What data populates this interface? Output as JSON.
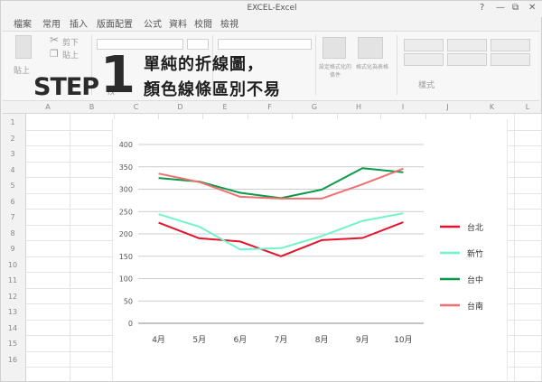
{
  "window": {
    "title": "EXCEL-Excel",
    "controls": [
      "?",
      "—",
      "⧉",
      "✕"
    ]
  },
  "ribbon_tabs": [
    "檔案",
    "常用",
    "插入",
    "版面配置",
    "公式",
    "資料",
    "校閱",
    "檢視"
  ],
  "ribbon": {
    "paste_label": "貼上",
    "cut_label": "剪下",
    "copy_label": "貼上",
    "cond_format_label": "設定格式化的條件",
    "format_table_label": "格式化為表格",
    "styles_label": "樣式",
    "fx_label": "fx"
  },
  "overlay": {
    "step_word": "STEP",
    "step_number": "1",
    "line1": "單純的折線圖，",
    "line2": "顏色線條區別不易"
  },
  "sheet": {
    "columns": [
      "A",
      "B",
      "C",
      "D",
      "E",
      "F",
      "G",
      "H",
      "I",
      "J",
      "K",
      "L"
    ],
    "rows": [
      "1",
      "2",
      "3",
      "4",
      "5",
      "6",
      "7",
      "8",
      "9",
      "10",
      "11",
      "12",
      "13",
      "14",
      "15",
      "16"
    ]
  },
  "chart_data": {
    "type": "line",
    "categories": [
      "4月",
      "5月",
      "6月",
      "7月",
      "8月",
      "9月",
      "10月"
    ],
    "ylim": [
      0,
      400
    ],
    "yticks": [
      "0",
      "50",
      "100",
      "150",
      "200",
      "250",
      "300",
      "350",
      "400"
    ],
    "grid": true,
    "legend_position": "right",
    "series": [
      {
        "name": "台北",
        "color": "#e3142d",
        "values": [
          225,
          190,
          183,
          150,
          186,
          191,
          226
        ]
      },
      {
        "name": "新竹",
        "color": "#6ff5c9",
        "values": [
          244,
          216,
          165,
          168,
          195,
          229,
          246
        ]
      },
      {
        "name": "台中",
        "color": "#0b9a4a",
        "values": [
          325,
          317,
          292,
          280,
          299,
          347,
          338
        ]
      },
      {
        "name": "台南",
        "color": "#ee7070",
        "values": [
          335,
          316,
          283,
          279,
          279,
          311,
          346
        ]
      }
    ]
  }
}
